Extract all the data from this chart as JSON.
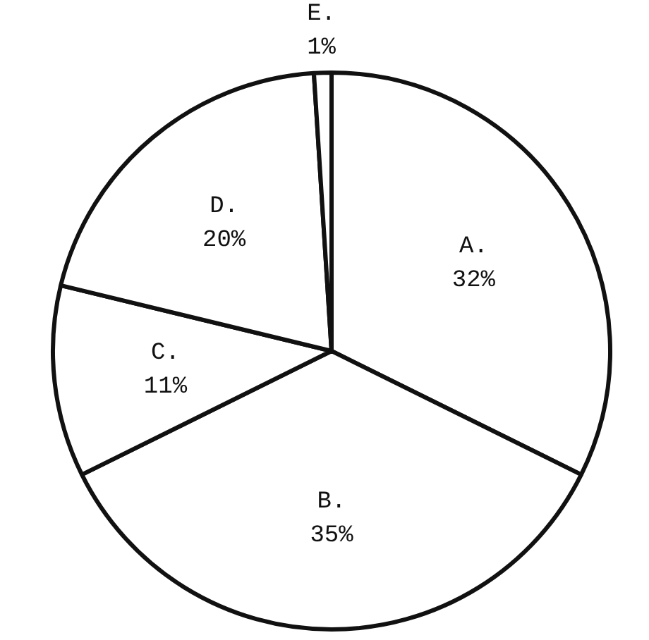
{
  "chart_data": {
    "type": "pie",
    "categories": [
      "A.",
      "B.",
      "C.",
      "D.",
      "E."
    ],
    "values": [
      32,
      35,
      11,
      20,
      1
    ],
    "value_labels": [
      "32%",
      "35%",
      "11%",
      "20%",
      "1%"
    ],
    "colors": [
      "#ffffff",
      "#ffffff",
      "#ffffff",
      "#ffffff",
      "#ffffff"
    ],
    "legend": false
  }
}
